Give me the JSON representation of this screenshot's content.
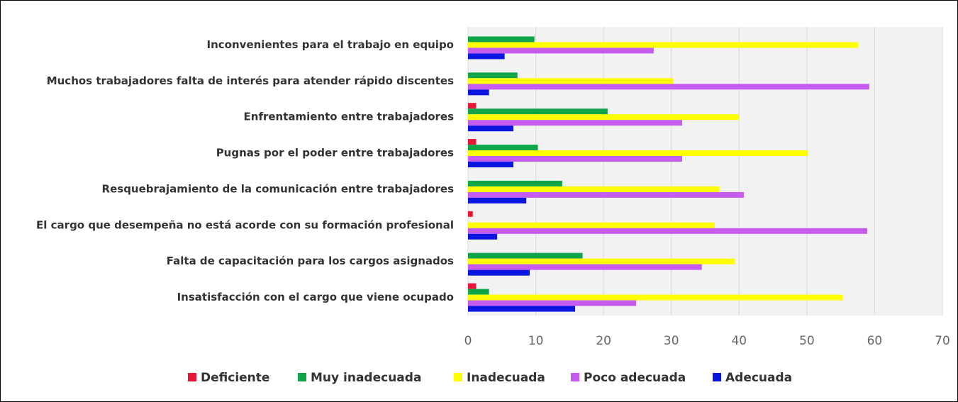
{
  "chart_data": {
    "type": "hbar",
    "categories": [
      "Inconvenientes para el trabajo en equipo",
      "Muchos trabajadores falta de interés para atender rápido discentes",
      "Enfrentamiento entre trabajadores",
      "Pugnas por el poder entre trabajadores",
      "Resquebrajamiento de la comunicación entre trabajadores",
      "El cargo que desempeña no está acorde con su formación profesional",
      "Falta de capacitación para los cargos asignados",
      "Insatisfacción con el cargo que viene ocupado"
    ],
    "series": [
      {
        "name": "Deficiente",
        "color": "#e8173a",
        "values": [
          0,
          0,
          1.2,
          1.2,
          0,
          0.7,
          0,
          1.2
        ]
      },
      {
        "name": "Muy inadecuada",
        "color": "#0fa64a",
        "values": [
          9.8,
          7.3,
          20.6,
          10.3,
          13.9,
          0,
          16.9,
          3.1
        ]
      },
      {
        "name": "Inadecuada",
        "color": "#ffff00",
        "values": [
          57.6,
          30.3,
          40,
          50.2,
          37.1,
          36.4,
          39.4,
          55.3
        ]
      },
      {
        "name": "Poco adecuada",
        "color": "#c65bf0",
        "values": [
          27.4,
          59.2,
          31.6,
          31.6,
          40.7,
          58.9,
          34.5,
          24.8
        ]
      },
      {
        "name": "Adecuada",
        "color": "#0a16e0",
        "values": [
          5.4,
          3.1,
          6.7,
          6.7,
          8.6,
          4.3,
          9.1,
          15.8
        ]
      }
    ],
    "xlim": [
      0,
      70
    ],
    "xticks": [
      0,
      10,
      20,
      30,
      40,
      50,
      60,
      70
    ],
    "grid": true,
    "legend": "bottom"
  }
}
